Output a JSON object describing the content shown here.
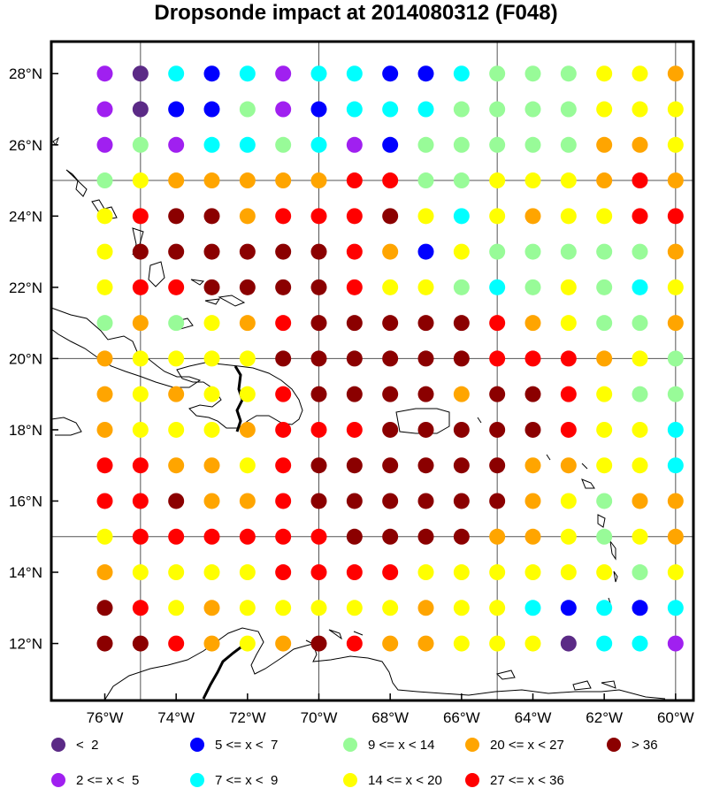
{
  "title": "Dropsonde impact at 2014080312 (F048)",
  "colors": {
    "c1": "#5b2a86",
    "c2": "#a020f0",
    "c3": "#0000ff",
    "c4": "#00ffff",
    "c5": "#98fb98",
    "c6": "#ffff00",
    "c7": "#ffa500",
    "c8": "#ff0000",
    "c9": "#8b0000"
  },
  "legend": [
    {
      "key": "c1",
      "label": "<  2"
    },
    {
      "key": "c2",
      "label": "2 <= x <  5"
    },
    {
      "key": "c3",
      "label": "5 <= x <  7"
    },
    {
      "key": "c4",
      "label": "7 <= x <  9"
    },
    {
      "key": "c5",
      "label": "9 <= x < 14"
    },
    {
      "key": "c6",
      "label": "14 <= x < 20"
    },
    {
      "key": "c7",
      "label": "20 <= x < 27"
    },
    {
      "key": "c8",
      "label": "27 <= x < 36"
    },
    {
      "key": "c9",
      "label": "> 36"
    }
  ],
  "map": {
    "lon_range": [
      -77.5,
      -59.5
    ],
    "lat_range": [
      10.4,
      28.9
    ],
    "x_ticks": [
      {
        "lon": -76,
        "label": "76°W"
      },
      {
        "lon": -74,
        "label": "74°W"
      },
      {
        "lon": -72,
        "label": "72°W"
      },
      {
        "lon": -70,
        "label": "70°W"
      },
      {
        "lon": -68,
        "label": "68°W"
      },
      {
        "lon": -66,
        "label": "66°W"
      },
      {
        "lon": -64,
        "label": "64°W"
      },
      {
        "lon": -62,
        "label": "62°W"
      },
      {
        "lon": -60,
        "label": "60°W"
      }
    ],
    "y_ticks": [
      {
        "lat": 12,
        "label": "12°N"
      },
      {
        "lat": 14,
        "label": "14°N"
      },
      {
        "lat": 16,
        "label": "16°N"
      },
      {
        "lat": 18,
        "label": "18°N"
      },
      {
        "lat": 20,
        "label": "20°N"
      },
      {
        "lat": 22,
        "label": "22°N"
      },
      {
        "lat": 24,
        "label": "24°N"
      },
      {
        "lat": 26,
        "label": "26°N"
      },
      {
        "lat": 28,
        "label": "28°N"
      }
    ],
    "grid_lons": [
      -75,
      -70,
      -65,
      -60
    ],
    "grid_lats": [
      15,
      20,
      25
    ],
    "point_lons": [
      -76,
      -75,
      -74,
      -73,
      -72,
      -71,
      -70,
      -69,
      -68,
      -67,
      -66,
      -65,
      -64,
      -63,
      -62,
      -61,
      -60
    ],
    "point_lats": [
      28,
      27,
      26,
      25,
      24,
      23,
      22,
      21,
      20,
      19,
      18,
      17,
      16,
      15,
      14,
      13,
      12
    ],
    "grid_codes": [
      "21434244334555667",
      "21335234445555666",
      "25244542355555776",
      "56777778855666787",
      "68997888964676688",
      "69999998736555557",
      "68899998665456546",
      "57567899999876557",
      "76666999999888765",
      "76766899997998655",
      "76667888999998664",
      "88776899999977664",
      "88977899999976577",
      "68888889999776567",
      "76666888866666656",
      "98676666676643434",
      "99876798776661442"
    ]
  }
}
